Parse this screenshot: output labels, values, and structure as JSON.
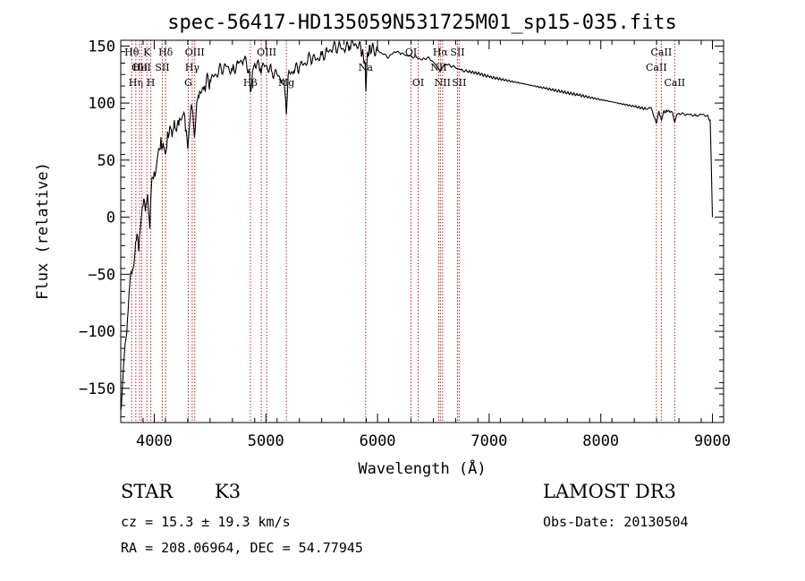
{
  "chart_data": {
    "type": "line",
    "title": "spec-56417-HD135059N531725M01_sp15-035.fits",
    "xlabel": "Wavelength (Å)",
    "ylabel": "Flux (relative)",
    "xlim": [
      3700,
      9100
    ],
    "ylim": [
      -180,
      155
    ],
    "x_ticks": [
      4000,
      5000,
      6000,
      7000,
      8000,
      9000
    ],
    "y_ticks": [
      -150,
      -100,
      -50,
      0,
      50,
      100,
      150
    ],
    "y_tick_labels": [
      "−150",
      "−100",
      "−50",
      "0",
      "50",
      "100",
      "150"
    ],
    "series": [
      {
        "name": "flux",
        "x": [
          3700,
          3720,
          3740,
          3760,
          3780,
          3800,
          3820,
          3840,
          3860,
          3880,
          3900,
          3920,
          3940,
          3960,
          3980,
          4000,
          4020,
          4040,
          4060,
          4080,
          4100,
          4120,
          4140,
          4160,
          4180,
          4200,
          4220,
          4240,
          4260,
          4280,
          4300,
          4320,
          4340,
          4360,
          4380,
          4400,
          4450,
          4500,
          4550,
          4600,
          4650,
          4700,
          4750,
          4800,
          4850,
          4861,
          4880,
          4900,
          4950,
          5000,
          5050,
          5100,
          5150,
          5170,
          5183,
          5200,
          5250,
          5300,
          5350,
          5400,
          5450,
          5500,
          5550,
          5600,
          5650,
          5700,
          5750,
          5800,
          5850,
          5890,
          5896,
          5910,
          5950,
          6000,
          6050,
          6100,
          6150,
          6200,
          6250,
          6300,
          6350,
          6400,
          6450,
          6500,
          6563,
          6600,
          6650,
          6700,
          6750,
          6800,
          6900,
          7000,
          7100,
          7200,
          7300,
          7400,
          7500,
          7600,
          7700,
          7800,
          7900,
          8000,
          8100,
          8200,
          8300,
          8400,
          8450,
          8498,
          8520,
          8542,
          8560,
          8600,
          8640,
          8662,
          8680,
          8700,
          8750,
          8800,
          8850,
          8900,
          8950,
          8980,
          9000
        ],
        "values": [
          -170,
          -140,
          -110,
          -90,
          -60,
          -50,
          -40,
          -20,
          -30,
          -5,
          10,
          5,
          20,
          -10,
          35,
          40,
          45,
          60,
          70,
          65,
          55,
          75,
          80,
          70,
          85,
          75,
          80,
          85,
          90,
          75,
          60,
          85,
          95,
          70,
          100,
          105,
          115,
          120,
          125,
          130,
          132,
          128,
          135,
          138,
          130,
          110,
          128,
          135,
          130,
          133,
          128,
          125,
          120,
          110,
          90,
          125,
          128,
          132,
          135,
          140,
          138,
          142,
          145,
          148,
          150,
          147,
          150,
          152,
          148,
          135,
          110,
          145,
          148,
          146,
          143,
          140,
          145,
          144,
          142,
          141,
          140,
          138,
          140,
          136,
          128,
          134,
          133,
          131,
          129,
          128,
          126,
          123,
          121,
          119,
          117,
          115,
          113,
          111,
          109,
          107,
          105,
          103,
          101,
          99,
          97,
          95,
          96,
          82,
          93,
          85,
          92,
          93,
          92,
          83,
          90,
          91,
          90,
          90,
          89,
          90,
          89,
          85,
          0
        ]
      }
    ],
    "line_marks": [
      {
        "x": 3798,
        "label": "Hθ",
        "row": 0
      },
      {
        "x": 3835,
        "label": "Hη",
        "row": 2
      },
      {
        "x": 3869,
        "label": "OII",
        "row": 1
      },
      {
        "x": 3889,
        "label": "HeI",
        "row": 1
      },
      {
        "x": 3934,
        "label": "K",
        "row": 0
      },
      {
        "x": 3969,
        "label": "H",
        "row": 2
      },
      {
        "x": 4072,
        "label": "SII",
        "row": 1
      },
      {
        "x": 4102,
        "label": "Hδ",
        "row": 0
      },
      {
        "x": 4305,
        "label": "G",
        "row": 2
      },
      {
        "x": 4340,
        "label": "Hγ",
        "row": 1
      },
      {
        "x": 4363,
        "label": "OIII",
        "row": 0
      },
      {
        "x": 4861,
        "label": "Hβ",
        "row": 2
      },
      {
        "x": 4959,
        "label": "",
        "row": 0
      },
      {
        "x": 5007,
        "label": "OIII",
        "row": 0
      },
      {
        "x": 5183,
        "label": "Mg",
        "row": 2
      },
      {
        "x": 5894,
        "label": "Na",
        "row": 1
      },
      {
        "x": 6300,
        "label": "OI",
        "row": 0
      },
      {
        "x": 6364,
        "label": "OI",
        "row": 2
      },
      {
        "x": 6548,
        "label": "NII",
        "row": 1
      },
      {
        "x": 6563,
        "label": "Hα",
        "row": 0
      },
      {
        "x": 6583,
        "label": "NII",
        "row": 2
      },
      {
        "x": 6716,
        "label": "SII",
        "row": 0
      },
      {
        "x": 6731,
        "label": "SII",
        "row": 2
      },
      {
        "x": 8498,
        "label": "CaII",
        "row": 1
      },
      {
        "x": 8542,
        "label": "CaII",
        "row": 0
      },
      {
        "x": 8662,
        "label": "CaII",
        "row": 2
      }
    ],
    "mark_color": "#b22222",
    "line_color": "#000000"
  },
  "info": {
    "object_type": "STAR",
    "subclass": "K3",
    "survey": "LAMOST DR3",
    "redshift": "cz = 15.3 ± 19.3 km/s",
    "obs_date": "Obs-Date: 20130504",
    "coords": "RA = 208.06964, DEC =  54.77945"
  }
}
